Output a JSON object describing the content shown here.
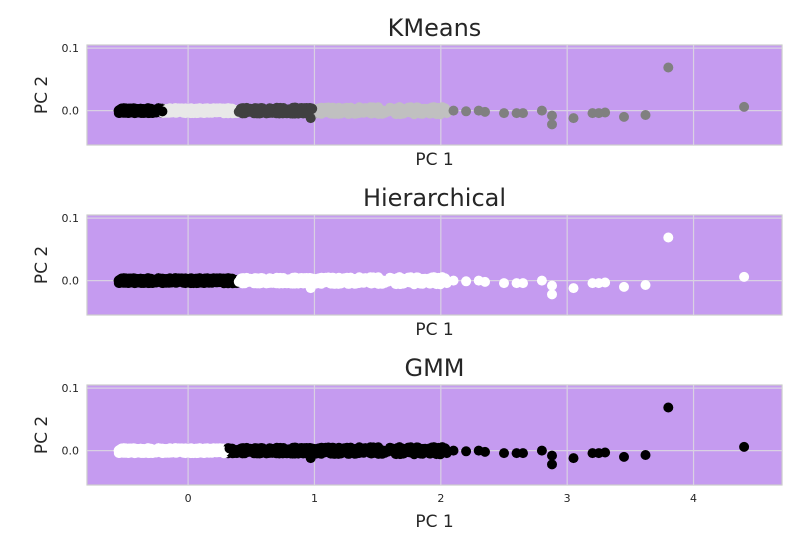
{
  "chart_data": [
    {
      "type": "scatter",
      "title": "KMeans",
      "xlabel": "PC 1",
      "ylabel": "PC 2",
      "xlim": [
        -0.8,
        4.7
      ],
      "ylim": [
        -0.055,
        0.105
      ],
      "xticks": [],
      "yticks": [
        0.0,
        0.1
      ],
      "ytick_labels": [
        "0.0",
        "0.1"
      ],
      "grid": true,
      "background_color": "#c59bf0",
      "clusters": [
        {
          "color": "#000000",
          "range": [
            -0.55,
            0.0
          ]
        },
        {
          "color": "#e8e8e8",
          "range": [
            -0.2,
            0.4
          ]
        },
        {
          "color": "#404040",
          "range": [
            0.4,
            1.0
          ]
        },
        {
          "color": "#c0c0c0",
          "range": [
            1.0,
            2.05
          ]
        },
        {
          "color": "#808080",
          "range": [
            2.05,
            4.5
          ]
        }
      ],
      "points": [
        {
          "x": 2.1,
          "y": 0.0,
          "c": 4
        },
        {
          "x": 2.2,
          "y": -0.001,
          "c": 4
        },
        {
          "x": 2.3,
          "y": 0.0,
          "c": 4
        },
        {
          "x": 2.35,
          "y": -0.002,
          "c": 4
        },
        {
          "x": 2.5,
          "y": -0.004,
          "c": 4
        },
        {
          "x": 2.6,
          "y": -0.004,
          "c": 4
        },
        {
          "x": 2.65,
          "y": -0.004,
          "c": 4
        },
        {
          "x": 2.8,
          "y": 0.0,
          "c": 4
        },
        {
          "x": 2.88,
          "y": -0.008,
          "c": 4
        },
        {
          "x": 2.88,
          "y": -0.022,
          "c": 4
        },
        {
          "x": 3.05,
          "y": -0.012,
          "c": 4
        },
        {
          "x": 3.2,
          "y": -0.004,
          "c": 4
        },
        {
          "x": 3.25,
          "y": -0.004,
          "c": 4
        },
        {
          "x": 3.3,
          "y": -0.003,
          "c": 4
        },
        {
          "x": 3.45,
          "y": -0.01,
          "c": 4
        },
        {
          "x": 3.62,
          "y": -0.007,
          "c": 4
        },
        {
          "x": 3.8,
          "y": 0.069,
          "c": 4
        },
        {
          "x": 4.4,
          "y": 0.006,
          "c": 4
        },
        {
          "x": 0.97,
          "y": -0.012,
          "c": 2
        }
      ]
    },
    {
      "type": "scatter",
      "title": "Hierarchical",
      "xlabel": "PC 1",
      "ylabel": "PC 2",
      "xlim": [
        -0.8,
        4.7
      ],
      "ylim": [
        -0.055,
        0.105
      ],
      "xticks": [],
      "yticks": [
        0.0,
        0.1
      ],
      "ytick_labels": [
        "0.0",
        "0.1"
      ],
      "grid": true,
      "background_color": "#c59bf0",
      "clusters": [
        {
          "color": "#000000",
          "range": [
            -0.55,
            0.4
          ]
        },
        {
          "color": "#ffffff",
          "range": [
            0.4,
            4.5
          ]
        }
      ],
      "points": [
        {
          "x": 2.1,
          "y": 0.0,
          "c": 1
        },
        {
          "x": 2.2,
          "y": -0.001,
          "c": 1
        },
        {
          "x": 2.3,
          "y": 0.0,
          "c": 1
        },
        {
          "x": 2.35,
          "y": -0.002,
          "c": 1
        },
        {
          "x": 2.5,
          "y": -0.004,
          "c": 1
        },
        {
          "x": 2.6,
          "y": -0.004,
          "c": 1
        },
        {
          "x": 2.65,
          "y": -0.004,
          "c": 1
        },
        {
          "x": 2.8,
          "y": 0.0,
          "c": 1
        },
        {
          "x": 2.88,
          "y": -0.008,
          "c": 1
        },
        {
          "x": 2.88,
          "y": -0.022,
          "c": 1
        },
        {
          "x": 3.05,
          "y": -0.012,
          "c": 1
        },
        {
          "x": 3.2,
          "y": -0.004,
          "c": 1
        },
        {
          "x": 3.25,
          "y": -0.004,
          "c": 1
        },
        {
          "x": 3.3,
          "y": -0.003,
          "c": 1
        },
        {
          "x": 3.45,
          "y": -0.01,
          "c": 1
        },
        {
          "x": 3.62,
          "y": -0.007,
          "c": 1
        },
        {
          "x": 3.8,
          "y": 0.069,
          "c": 1
        },
        {
          "x": 4.4,
          "y": 0.006,
          "c": 1
        },
        {
          "x": 0.97,
          "y": -0.012,
          "c": 1
        }
      ]
    },
    {
      "type": "scatter",
      "title": "GMM",
      "xlabel": "PC 1",
      "ylabel": "PC 2",
      "xlim": [
        -0.8,
        4.7
      ],
      "ylim": [
        -0.055,
        0.105
      ],
      "xticks": [
        0,
        1,
        2,
        3,
        4
      ],
      "xtick_labels": [
        "0",
        "1",
        "2",
        "3",
        "4"
      ],
      "yticks": [
        0.0,
        0.1
      ],
      "ytick_labels": [
        "0.0",
        "0.1"
      ],
      "grid": true,
      "background_color": "#c59bf0",
      "clusters": [
        {
          "color": "#ffffff",
          "range": [
            -0.55,
            0.3
          ]
        },
        {
          "color": "#000000",
          "range": [
            0.3,
            4.5
          ]
        }
      ],
      "points": [
        {
          "x": 2.1,
          "y": 0.0,
          "c": 1
        },
        {
          "x": 2.2,
          "y": -0.001,
          "c": 1
        },
        {
          "x": 2.3,
          "y": 0.0,
          "c": 1
        },
        {
          "x": 2.35,
          "y": -0.002,
          "c": 1
        },
        {
          "x": 2.5,
          "y": -0.004,
          "c": 1
        },
        {
          "x": 2.6,
          "y": -0.004,
          "c": 1
        },
        {
          "x": 2.65,
          "y": -0.004,
          "c": 1
        },
        {
          "x": 2.8,
          "y": 0.0,
          "c": 1
        },
        {
          "x": 2.88,
          "y": -0.008,
          "c": 1
        },
        {
          "x": 2.88,
          "y": -0.022,
          "c": 1
        },
        {
          "x": 3.05,
          "y": -0.012,
          "c": 1
        },
        {
          "x": 3.2,
          "y": -0.004,
          "c": 1
        },
        {
          "x": 3.25,
          "y": -0.004,
          "c": 1
        },
        {
          "x": 3.3,
          "y": -0.003,
          "c": 1
        },
        {
          "x": 3.45,
          "y": -0.01,
          "c": 1
        },
        {
          "x": 3.62,
          "y": -0.007,
          "c": 1
        },
        {
          "x": 3.8,
          "y": 0.069,
          "c": 1
        },
        {
          "x": 4.4,
          "y": 0.006,
          "c": 1
        },
        {
          "x": 0.97,
          "y": -0.012,
          "c": 1
        }
      ]
    }
  ]
}
